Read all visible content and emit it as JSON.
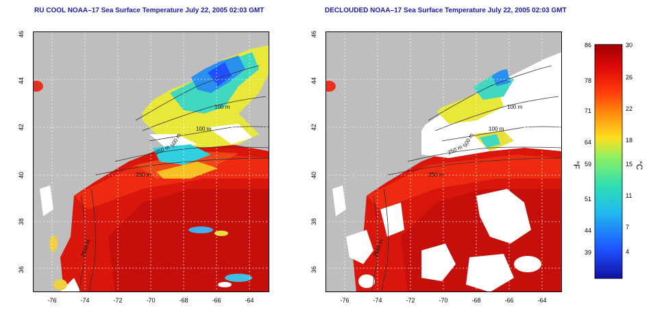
{
  "panels": [
    {
      "title": "RU COOL NOAA–17 Sea Surface Temperature July 22, 2005 02:03 GMT",
      "x_ticks": [
        "-76",
        "-74",
        "-72",
        "-70",
        "-68",
        "-66",
        "-64"
      ],
      "y_ticks": [
        "46",
        "44",
        "42",
        "40",
        "38",
        "36"
      ],
      "contour_labels": [
        "100 m",
        "100 m",
        "250 m",
        "250 m",
        "2500 m",
        "500 m"
      ]
    },
    {
      "title": "DECLOUDED NOAA–17 Sea Surface Temperature July 22, 2005 02:03 GMT",
      "x_ticks": [
        "-76",
        "-74",
        "-72",
        "-70",
        "-68",
        "-66",
        "-64"
      ],
      "y_ticks": [
        "46",
        "44",
        "42",
        "40",
        "38",
        "36"
      ],
      "contour_labels": [
        "100 m",
        "100 m",
        "250 m",
        "250 m",
        "2500 m",
        "500 m"
      ]
    }
  ],
  "colorbar": {
    "unit_left": "°F",
    "unit_right": "°C",
    "fahrenheit_ticks": [
      "86",
      "78",
      "71",
      "64",
      "59",
      "51",
      "44",
      "39"
    ],
    "celsius_ticks": [
      "30",
      "26",
      "22",
      "18",
      "15",
      "11",
      "7",
      "4"
    ],
    "gradient_colors": [
      "#1010a0",
      "#1e50ff",
      "#20b8f0",
      "#30e0b0",
      "#90f060",
      "#ffe020",
      "#ff9010",
      "#ff3a0a",
      "#e00a0a",
      "#a00000"
    ]
  },
  "colors": {
    "land": "#bebebe",
    "cloud": "#ffffff",
    "title": "#1a1aa8"
  }
}
